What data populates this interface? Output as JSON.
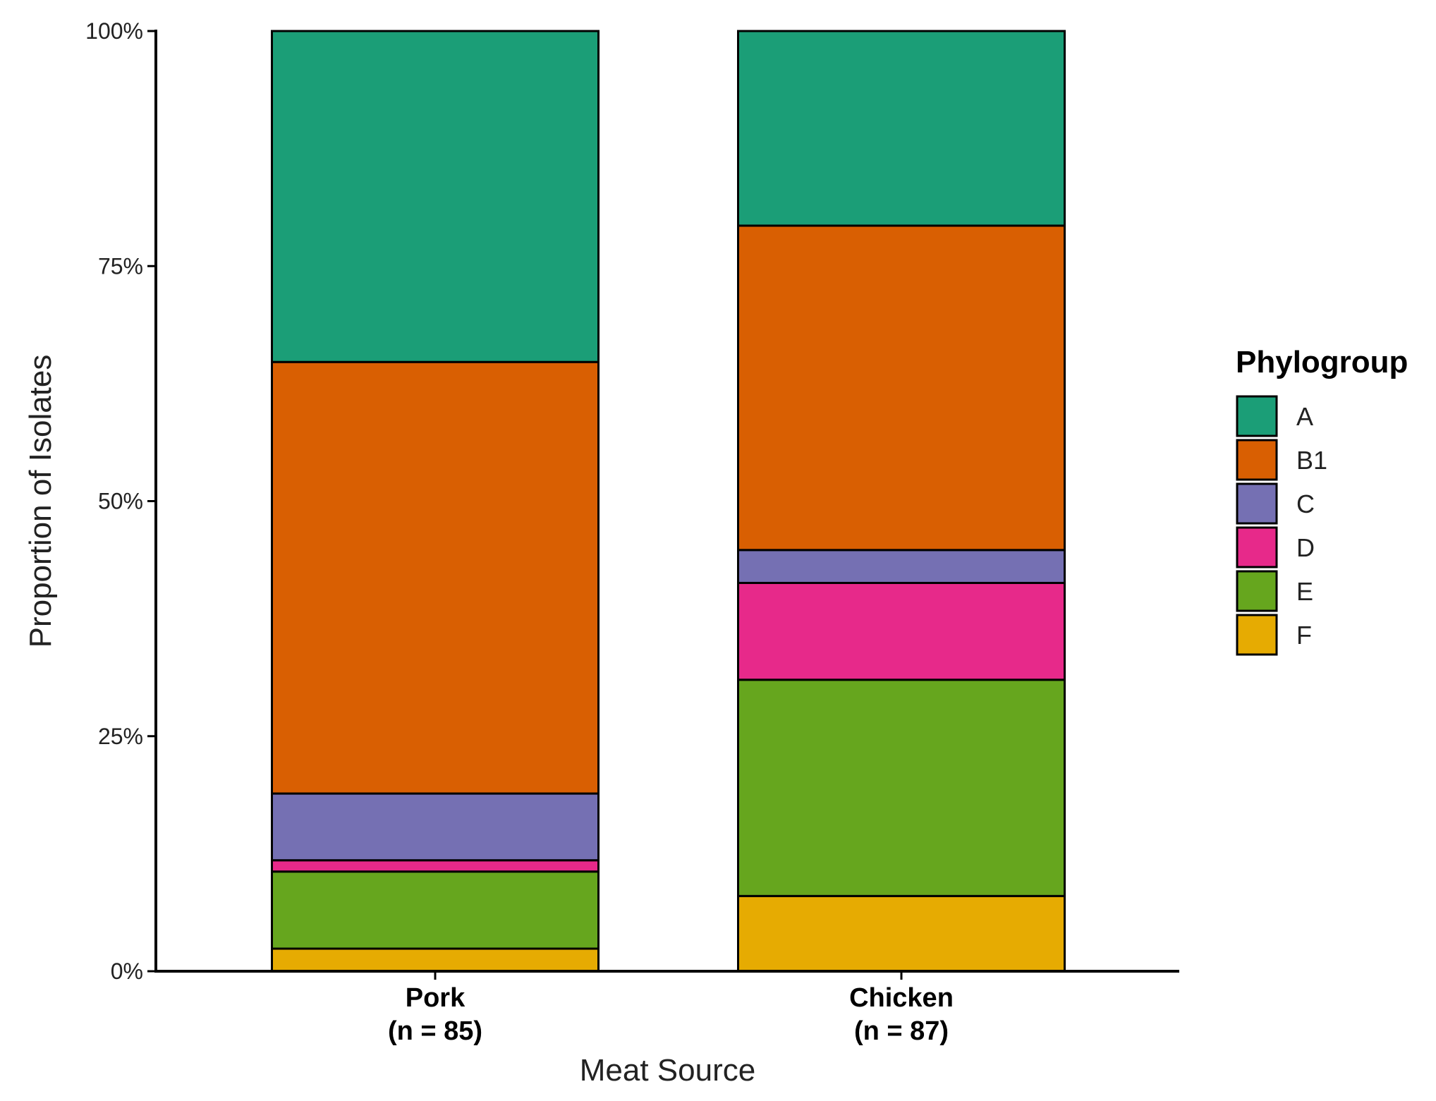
{
  "chart_data": {
    "type": "bar",
    "stacked": true,
    "percent_scale": true,
    "categories": [
      {
        "name": "Pork",
        "n_label": "(n = 85)"
      },
      {
        "name": "Chicken",
        "n_label": "(n = 87)"
      }
    ],
    "series": [
      {
        "name": "F",
        "color": "#E6AB02",
        "values": [
          2.4,
          8.0
        ]
      },
      {
        "name": "E",
        "color": "#66A61E",
        "values": [
          8.2,
          23.0
        ]
      },
      {
        "name": "D",
        "color": "#E7298A",
        "values": [
          1.2,
          10.3
        ]
      },
      {
        "name": "C",
        "color": "#7570B3",
        "values": [
          7.1,
          3.5
        ]
      },
      {
        "name": "B1",
        "color": "#D95F02",
        "values": [
          45.9,
          34.5
        ]
      },
      {
        "name": "A",
        "color": "#1B9E77",
        "values": [
          35.2,
          20.7
        ]
      }
    ],
    "legend_order": [
      "A",
      "B1",
      "C",
      "D",
      "E",
      "F"
    ],
    "xlabel": "Meat Source",
    "ylabel": "Proportion of Isolates",
    "ylim": [
      0,
      100
    ],
    "yticks": [
      0,
      25,
      50,
      75,
      100
    ],
    "ytick_labels": [
      "0%",
      "25%",
      "50%",
      "75%",
      "100%"
    ],
    "legend": {
      "title": "Phylogroup",
      "placement": "right"
    },
    "grid": false
  }
}
